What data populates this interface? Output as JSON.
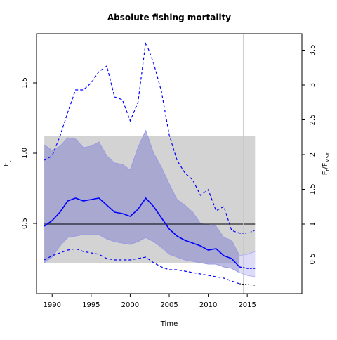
{
  "chart_data": {
    "type": "line",
    "title": "Absolute fishing mortality",
    "xlabel": "Time",
    "ylabel": "F",
    "ylabel_sub": "t",
    "y2label_parts": [
      "F",
      "t",
      "/F",
      "MSY"
    ],
    "xlim": [
      1988,
      2022
    ],
    "ylim": [
      0,
      1.85
    ],
    "y2_scale": 0.495,
    "x_ticks": [
      1990,
      1995,
      2000,
      2005,
      2010,
      2015
    ],
    "y_ticks": [
      0.5,
      1.0,
      1.5
    ],
    "y_tick_labels": [
      "0.5",
      "1.0",
      "1.5"
    ],
    "y2_ticks": [
      0.5,
      1,
      1.5,
      2,
      2.5,
      3,
      3.5
    ],
    "y2_tick_labels": [
      "0.5",
      "1",
      "1.5",
      "2",
      "2.5",
      "3",
      "3.5"
    ],
    "grid": false,
    "fmsy_band": {
      "x": [
        1989,
        2016
      ],
      "y": [
        0.22,
        1.12
      ]
    },
    "fmsy_line": 0.495,
    "last_obs_line": 2014.5,
    "colors": {
      "estimate": "#0000ff",
      "ci_fill": "#8c8cd0",
      "band": "#d3d3d3",
      "ref_line": "#000000",
      "vline": "#c8c8c8",
      "forecast_fill": "#dcdcf8"
    },
    "series": [
      {
        "role": "estimate",
        "x": [
          1989,
          1990,
          1991,
          1992,
          1993,
          1994,
          1995,
          1996,
          1997,
          1998,
          1999,
          2000,
          2001,
          2002,
          2003,
          2004,
          2005,
          2006,
          2007,
          2008,
          2009,
          2010,
          2011,
          2012,
          2013,
          2014
        ],
        "values": [
          0.48,
          0.52,
          0.58,
          0.66,
          0.68,
          0.66,
          0.67,
          0.68,
          0.63,
          0.58,
          0.57,
          0.55,
          0.6,
          0.68,
          0.62,
          0.54,
          0.46,
          0.41,
          0.38,
          0.36,
          0.34,
          0.31,
          0.32,
          0.27,
          0.25,
          0.19
        ]
      },
      {
        "role": "upper_ci",
        "x": [
          1989,
          1990,
          1991,
          1992,
          1993,
          1994,
          1995,
          1996,
          1997,
          1998,
          1999,
          2000,
          2001,
          2002,
          2003,
          2004,
          2005,
          2006,
          2007,
          2008,
          2009,
          2010,
          2011,
          2012,
          2013,
          2014
        ],
        "values": [
          1.06,
          1.02,
          1.05,
          1.11,
          1.1,
          1.04,
          1.05,
          1.08,
          0.98,
          0.93,
          0.92,
          0.88,
          1.04,
          1.16,
          1.0,
          0.9,
          0.78,
          0.67,
          0.63,
          0.58,
          0.5,
          0.49,
          0.48,
          0.4,
          0.38,
          0.27
        ]
      },
      {
        "role": "lower_ci",
        "x": [
          1989,
          1990,
          1991,
          1992,
          1993,
          1994,
          1995,
          1996,
          1997,
          1998,
          1999,
          2000,
          2001,
          2002,
          2003,
          2004,
          2005,
          2006,
          2007,
          2008,
          2009,
          2010,
          2011,
          2012,
          2013,
          2014
        ],
        "values": [
          0.22,
          0.26,
          0.34,
          0.4,
          0.41,
          0.42,
          0.42,
          0.42,
          0.39,
          0.37,
          0.36,
          0.35,
          0.37,
          0.4,
          0.37,
          0.33,
          0.28,
          0.26,
          0.24,
          0.23,
          0.22,
          0.21,
          0.21,
          0.19,
          0.18,
          0.15
        ]
      },
      {
        "role": "upper_bound",
        "x": [
          1989,
          1990,
          1991,
          1992,
          1993,
          1994,
          1995,
          1996,
          1997,
          1998,
          1999,
          2000,
          2001,
          2002,
          2003,
          2004,
          2005,
          2006,
          2007,
          2008,
          2009,
          2010,
          2011,
          2012,
          2013,
          2014
        ],
        "values": [
          0.95,
          0.98,
          1.12,
          1.29,
          1.45,
          1.45,
          1.5,
          1.58,
          1.62,
          1.4,
          1.38,
          1.23,
          1.36,
          1.79,
          1.64,
          1.44,
          1.13,
          0.95,
          0.86,
          0.81,
          0.7,
          0.74,
          0.59,
          0.62,
          0.45,
          0.43
        ]
      },
      {
        "role": "lower_bound",
        "x": [
          1989,
          1990,
          1991,
          1992,
          1993,
          1994,
          1995,
          1996,
          1997,
          1998,
          1999,
          2000,
          2001,
          2002,
          2003,
          2004,
          2005,
          2006,
          2007,
          2008,
          2009,
          2010,
          2011,
          2012,
          2013,
          2014
        ],
        "values": [
          0.24,
          0.27,
          0.29,
          0.31,
          0.32,
          0.3,
          0.29,
          0.28,
          0.25,
          0.24,
          0.24,
          0.24,
          0.25,
          0.26,
          0.22,
          0.19,
          0.17,
          0.17,
          0.16,
          0.15,
          0.14,
          0.13,
          0.12,
          0.11,
          0.09,
          0.07
        ]
      },
      {
        "role": "forecast_estimate",
        "x": [
          2014,
          2015,
          2016
        ],
        "values": [
          0.19,
          0.18,
          0.18
        ]
      },
      {
        "role": "forecast_upper_ci",
        "x": [
          2014,
          2015,
          2016
        ],
        "values": [
          0.27,
          0.28,
          0.3
        ]
      },
      {
        "role": "forecast_lower_ci",
        "x": [
          2014,
          2015,
          2016
        ],
        "values": [
          0.15,
          0.13,
          0.12
        ]
      },
      {
        "role": "forecast_upper_bound",
        "x": [
          2014,
          2015,
          2016
        ],
        "values": [
          0.43,
          0.43,
          0.45
        ]
      },
      {
        "role": "forecast_lower_bound",
        "x": [
          2014,
          2015,
          2016
        ],
        "values": [
          0.07,
          0.065,
          0.06
        ]
      }
    ]
  }
}
